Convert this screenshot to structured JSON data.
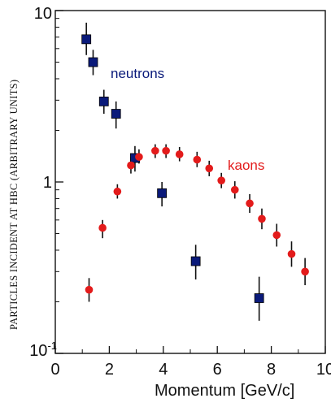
{
  "chart_data": {
    "type": "scatter",
    "xlabel": "Momentum [GeV/c]",
    "ylabel": "PARTICLES INCIDENT AT HBC (ARBITRARY UNITS)",
    "xlim": [
      0,
      10
    ],
    "ylim": [
      0.1,
      10
    ],
    "yscale": "log",
    "x_ticks": [
      "0",
      "2",
      "4",
      "6",
      "8",
      "10"
    ],
    "x_tick_values": [
      0,
      2,
      4,
      6,
      8,
      10
    ],
    "y_tick_values": [
      10,
      1,
      0.1
    ],
    "y_tick_labels": [
      {
        "base": "10",
        "exp": ""
      },
      {
        "base": "1",
        "exp": ""
      },
      {
        "base": "10",
        "exp": "-1"
      }
    ],
    "grid": false,
    "legend": "none",
    "series": [
      {
        "name": "neutrons",
        "color": "#0a1a7a",
        "marker": "square",
        "points": [
          {
            "x": 1.15,
            "y": 6.8,
            "lo": 5.5,
            "hi": 8.5
          },
          {
            "x": 1.4,
            "y": 5.0,
            "lo": 4.2,
            "hi": 5.9
          },
          {
            "x": 1.8,
            "y": 2.95,
            "lo": 2.5,
            "hi": 3.45
          },
          {
            "x": 2.25,
            "y": 2.5,
            "lo": 2.05,
            "hi": 2.95
          },
          {
            "x": 2.95,
            "y": 1.38,
            "lo": 1.15,
            "hi": 1.62
          },
          {
            "x": 3.95,
            "y": 0.86,
            "lo": 0.72,
            "hi": 1.0
          },
          {
            "x": 5.2,
            "y": 0.345,
            "lo": 0.27,
            "hi": 0.43
          },
          {
            "x": 7.55,
            "y": 0.21,
            "lo": 0.155,
            "hi": 0.28
          }
        ]
      },
      {
        "name": "kaons",
        "color": "#e31b1b",
        "marker": "circle",
        "points": [
          {
            "x": 1.25,
            "y": 0.235,
            "lo": 0.2,
            "hi": 0.275
          },
          {
            "x": 1.75,
            "y": 0.54,
            "lo": 0.47,
            "hi": 0.6
          },
          {
            "x": 2.3,
            "y": 0.88,
            "lo": 0.8,
            "hi": 0.97
          },
          {
            "x": 2.8,
            "y": 1.25,
            "lo": 1.12,
            "hi": 1.4
          },
          {
            "x": 3.1,
            "y": 1.4,
            "lo": 1.28,
            "hi": 1.55
          },
          {
            "x": 3.7,
            "y": 1.52,
            "lo": 1.38,
            "hi": 1.66
          },
          {
            "x": 4.1,
            "y": 1.52,
            "lo": 1.38,
            "hi": 1.66
          },
          {
            "x": 4.6,
            "y": 1.45,
            "lo": 1.32,
            "hi": 1.6
          },
          {
            "x": 5.25,
            "y": 1.35,
            "lo": 1.22,
            "hi": 1.5
          },
          {
            "x": 5.7,
            "y": 1.2,
            "lo": 1.08,
            "hi": 1.33
          },
          {
            "x": 6.15,
            "y": 1.02,
            "lo": 0.92,
            "hi": 1.13
          },
          {
            "x": 6.65,
            "y": 0.9,
            "lo": 0.8,
            "hi": 1.01
          },
          {
            "x": 7.2,
            "y": 0.75,
            "lo": 0.66,
            "hi": 0.85
          },
          {
            "x": 7.65,
            "y": 0.61,
            "lo": 0.53,
            "hi": 0.7
          },
          {
            "x": 8.2,
            "y": 0.49,
            "lo": 0.42,
            "hi": 0.57
          },
          {
            "x": 8.75,
            "y": 0.38,
            "lo": 0.32,
            "hi": 0.45
          },
          {
            "x": 9.25,
            "y": 0.3,
            "lo": 0.25,
            "hi": 0.36
          }
        ]
      }
    ]
  }
}
